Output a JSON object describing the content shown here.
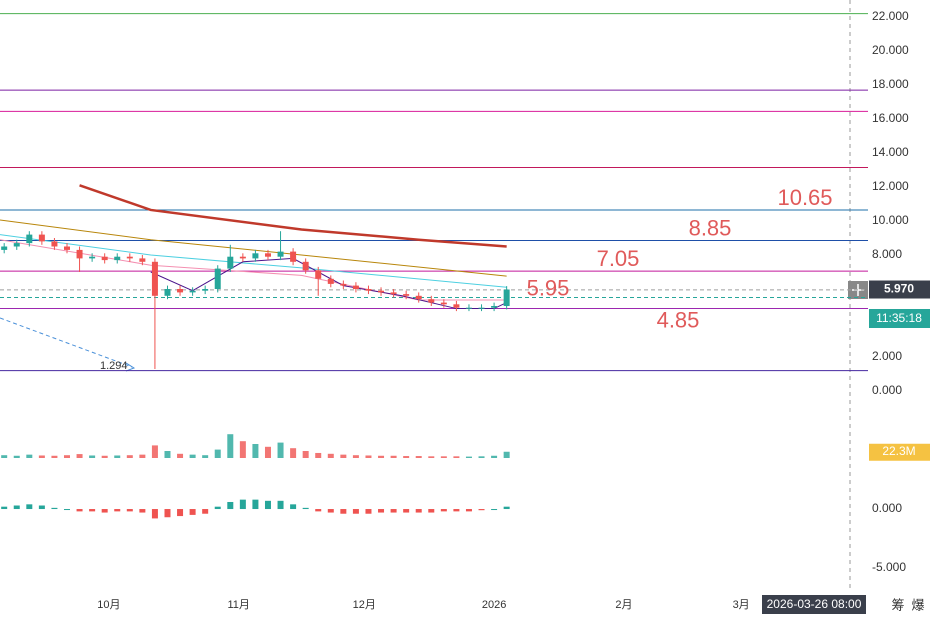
{
  "chart_data": {
    "type": "candlestick",
    "x": [
      5,
      8,
      11,
      14,
      17,
      20,
      23,
      26,
      29,
      32,
      35,
      38,
      41,
      44,
      47,
      50,
      53,
      56,
      59,
      62,
      65,
      68,
      71,
      74,
      77,
      80,
      83,
      86,
      89,
      92,
      95,
      98,
      101,
      104,
      107,
      110,
      113,
      116,
      119,
      122,
      125
    ],
    "open": [
      8.3,
      8.5,
      8.7,
      9.2,
      8.8,
      8.5,
      8.3,
      7.8,
      7.9,
      7.7,
      7.9,
      7.8,
      7.6,
      5.6,
      6.0,
      5.8,
      5.9,
      6.0,
      7.2,
      7.9,
      7.8,
      8.1,
      7.9,
      8.2,
      7.6,
      7.1,
      6.6,
      6.3,
      6.2,
      6.0,
      5.9,
      5.8,
      5.7,
      5.6,
      5.4,
      5.2,
      5.1,
      4.9,
      4.9,
      4.9,
      5.0
    ],
    "high": [
      8.7,
      8.9,
      9.4,
      9.4,
      9.0,
      8.7,
      8.5,
      8.1,
      8.1,
      8.1,
      8.1,
      8.0,
      7.8,
      6.2,
      6.2,
      6.1,
      6.2,
      7.4,
      8.6,
      8.1,
      8.3,
      8.3,
      9.4,
      8.4,
      7.8,
      7.3,
      6.8,
      6.5,
      6.4,
      6.2,
      6.1,
      6.0,
      5.9,
      5.8,
      5.6,
      5.4,
      5.3,
      5.1,
      5.1,
      5.2,
      6.17
    ],
    "low": [
      8.1,
      8.3,
      8.5,
      8.6,
      8.3,
      8.1,
      7.0,
      7.6,
      7.5,
      7.5,
      7.6,
      7.4,
      1.294,
      5.4,
      5.6,
      5.6,
      5.7,
      5.8,
      7.0,
      7.6,
      7.6,
      7.7,
      7.7,
      7.4,
      6.9,
      5.6,
      6.1,
      6.0,
      5.8,
      5.7,
      5.6,
      5.5,
      5.4,
      5.2,
      5.0,
      4.9,
      4.7,
      4.7,
      4.7,
      4.7,
      4.8
    ],
    "close": [
      8.5,
      8.7,
      9.2,
      8.8,
      8.5,
      8.3,
      7.8,
      7.9,
      7.7,
      7.9,
      7.8,
      7.6,
      5.6,
      6.0,
      5.8,
      5.9,
      6.0,
      7.2,
      7.9,
      7.8,
      8.1,
      7.9,
      8.2,
      7.6,
      7.1,
      6.6,
      6.3,
      6.2,
      6.0,
      5.9,
      5.8,
      5.7,
      5.6,
      5.4,
      5.2,
      5.1,
      4.9,
      4.9,
      4.9,
      5.0,
      5.97
    ],
    "up_color": "#26a69a",
    "down_color": "#ef5350",
    "xlim": [
      4,
      207
    ],
    "xticks": [
      {
        "value": 30,
        "label": "10月"
      },
      {
        "value": 61,
        "label": "11月"
      },
      {
        "value": 91,
        "label": "12月"
      },
      {
        "value": 122,
        "label": "2026"
      },
      {
        "value": 153,
        "label": "2月"
      },
      {
        "value": 181,
        "label": "3月"
      }
    ],
    "ylim": [
      -1,
      23
    ],
    "yticks": [
      {
        "value": 0,
        "label": "0.000"
      },
      {
        "value": 2,
        "label": "2.000"
      },
      {
        "value": 8,
        "label": "8.000"
      },
      {
        "value": 10,
        "label": "10.000"
      },
      {
        "value": 12,
        "label": "12.000"
      },
      {
        "value": 14,
        "label": "14.000"
      },
      {
        "value": 16,
        "label": "16.000"
      },
      {
        "value": 18,
        "label": "18.000"
      },
      {
        "value": 20,
        "label": "20.000"
      },
      {
        "value": 22,
        "label": "22.000"
      }
    ],
    "ma_lines": [
      {
        "color": "#c0392b",
        "x": [
          23,
          40,
          76,
          104,
          125
        ],
        "values": [
          12.1,
          10.65,
          9.5,
          8.9,
          8.5
        ]
      },
      {
        "color": "#b8860b",
        "x": [
          4,
          40,
          76,
          125
        ],
        "values": [
          10.06,
          8.9,
          8.0,
          6.76
        ]
      },
      {
        "color": "#4dd0e1",
        "x": [
          4,
          40,
          76,
          125
        ],
        "values": [
          9.2,
          8.0,
          7.24,
          6.1
        ]
      },
      {
        "color": "#f48fb1",
        "x": [
          4,
          40,
          76,
          104,
          125
        ],
        "values": [
          8.9,
          7.4,
          6.8,
          5.35,
          5.35
        ]
      },
      {
        "color": "#4a148c",
        "x": [
          40,
          50,
          62,
          74,
          86,
          100,
          113,
          122,
          125
        ],
        "values": [
          7.0,
          5.9,
          7.6,
          7.8,
          6.2,
          5.6,
          4.85,
          4.85,
          5.2
        ]
      }
    ],
    "levels": [
      {
        "value": 22.2,
        "color": "#4caf50"
      },
      {
        "value": 17.7,
        "color": "#7b1fa2"
      },
      {
        "value": 16.45,
        "color": "#d81b9a"
      },
      {
        "value": 13.15,
        "color": "#c2185b"
      },
      {
        "value": 10.65,
        "color": "#1e6fa8",
        "show_label": true
      },
      {
        "value": 8.85,
        "color": "#1e4fa8",
        "show_label": true
      },
      {
        "value": 7.05,
        "color": "#c2189b",
        "show_label": true
      },
      {
        "value": 5.95,
        "color": "#9e9e9e",
        "dashed": true,
        "show_label": true
      },
      {
        "value": 5.5,
        "color": "#26a69a",
        "dashed": true
      },
      {
        "value": 4.85,
        "color": "#9c27b0",
        "show_label": true
      },
      {
        "value": 1.2,
        "color": "#4527a0"
      }
    ],
    "level_label_color": "#e05a5a",
    "current_price": {
      "value": 5.97,
      "label": "5.970"
    },
    "countdown": "11:35:18",
    "volume": [
      10,
      8,
      12,
      9,
      8,
      10,
      14,
      9,
      8,
      9,
      10,
      12,
      45,
      25,
      15,
      12,
      10,
      30,
      85,
      60,
      50,
      40,
      55,
      35,
      25,
      18,
      15,
      12,
      10,
      9,
      8,
      8,
      7,
      7,
      6,
      6,
      6,
      5,
      6,
      8,
      22.3
    ],
    "volume_ylim": [
      0,
      100
    ],
    "volume_label": {
      "value": 22.3,
      "label": "22.3M"
    },
    "macd": [
      0.2,
      0.3,
      0.4,
      0.3,
      0.1,
      0,
      -0.2,
      -0.2,
      -0.3,
      -0.2,
      -0.2,
      -0.3,
      -0.8,
      -0.7,
      -0.6,
      -0.5,
      -0.4,
      0.2,
      0.6,
      0.8,
      0.8,
      0.7,
      0.7,
      0.4,
      0.1,
      -0.2,
      -0.3,
      -0.4,
      -0.4,
      -0.4,
      -0.3,
      -0.3,
      -0.3,
      -0.3,
      -0.3,
      -0.2,
      -0.2,
      -0.2,
      -0.1,
      0,
      0.2
    ],
    "macd_ylim": [
      -6.9,
      2.9
    ],
    "macd_yticks": [
      {
        "value": 0,
        "label": "0.000"
      },
      {
        "value": -5,
        "label": "-5.000"
      }
    ],
    "crosshair_date": "2026-03-26 08:00",
    "toolbar": [
      "筹",
      "爆"
    ]
  }
}
